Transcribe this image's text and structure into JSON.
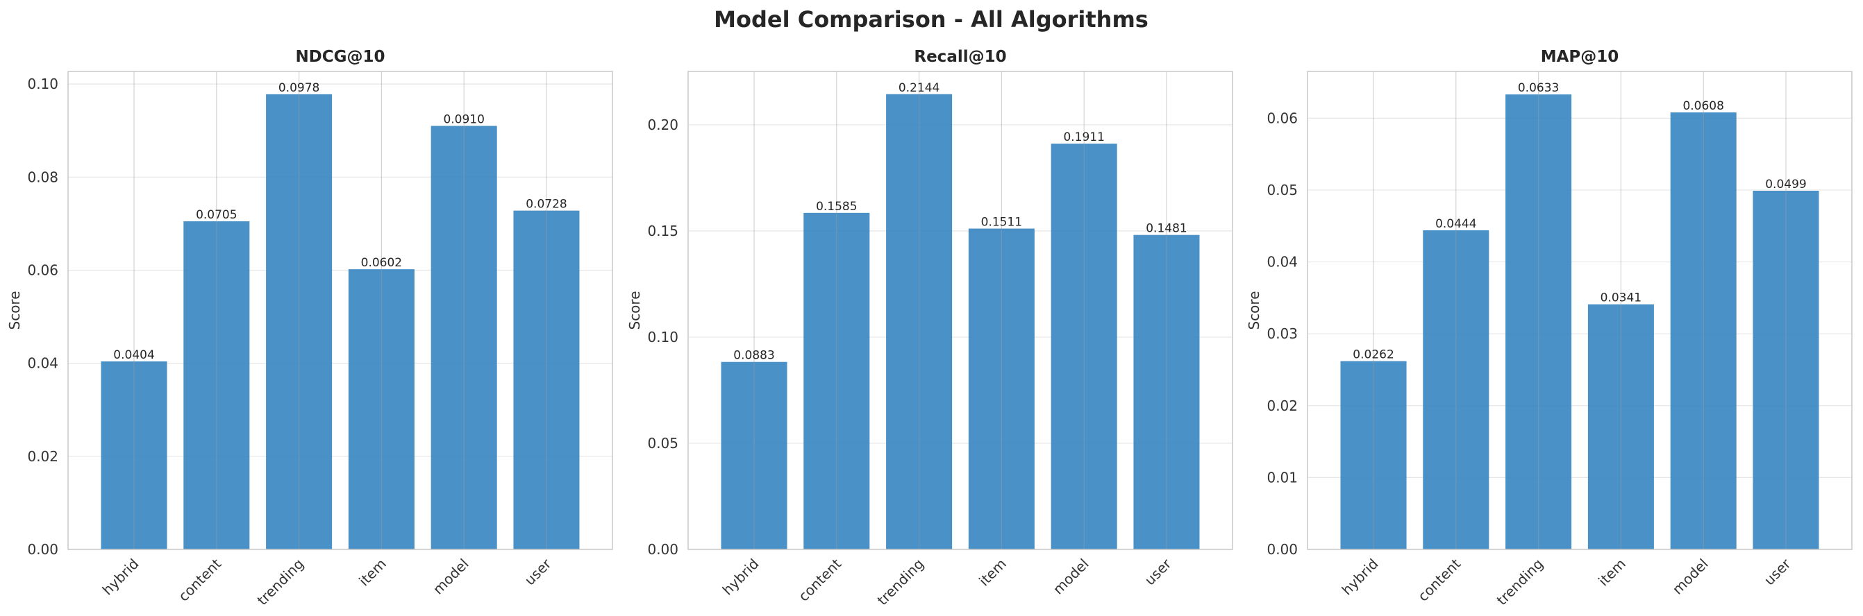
{
  "figure_title": "Model Comparison - All Algorithms",
  "colors": {
    "bar": "#3a88c1",
    "grid": "#e6e6e6",
    "axis": "#c8c8c8",
    "text": "#262626"
  },
  "chart_data": [
    {
      "type": "bar",
      "title": "NDCG@10",
      "xlabel": "",
      "ylabel": "Score",
      "categories": [
        "hybrid",
        "content",
        "trending",
        "item",
        "model",
        "user"
      ],
      "values": [
        0.0404,
        0.0705,
        0.0978,
        0.0602,
        0.091,
        0.0728
      ],
      "value_labels": [
        "0.0404",
        "0.0705",
        "0.0978",
        "0.0602",
        "0.0910",
        "0.0728"
      ],
      "ylim": [
        0,
        0.1027
      ],
      "yticks": [
        0.0,
        0.02,
        0.04,
        0.06,
        0.08,
        0.1
      ],
      "ytick_labels": [
        "0.00",
        "0.02",
        "0.04",
        "0.06",
        "0.08",
        "0.10"
      ],
      "grid": true
    },
    {
      "type": "bar",
      "title": "Recall@10",
      "xlabel": "",
      "ylabel": "Score",
      "categories": [
        "hybrid",
        "content",
        "trending",
        "item",
        "model",
        "user"
      ],
      "values": [
        0.0883,
        0.1585,
        0.2144,
        0.1511,
        0.1911,
        0.1481
      ],
      "value_labels": [
        "0.0883",
        "0.1585",
        "0.2144",
        "0.1511",
        "0.1911",
        "0.1481"
      ],
      "ylim": [
        0,
        0.2251
      ],
      "yticks": [
        0.0,
        0.05,
        0.1,
        0.15,
        0.2
      ],
      "ytick_labels": [
        "0.00",
        "0.05",
        "0.10",
        "0.15",
        "0.20"
      ],
      "grid": true
    },
    {
      "type": "bar",
      "title": "MAP@10",
      "xlabel": "",
      "ylabel": "Score",
      "categories": [
        "hybrid",
        "content",
        "trending",
        "item",
        "model",
        "user"
      ],
      "values": [
        0.0262,
        0.0444,
        0.0633,
        0.0341,
        0.0608,
        0.0499
      ],
      "value_labels": [
        "0.0262",
        "0.0444",
        "0.0633",
        "0.0341",
        "0.0608",
        "0.0499"
      ],
      "ylim": [
        0,
        0.0665
      ],
      "yticks": [
        0.0,
        0.01,
        0.02,
        0.03,
        0.04,
        0.05,
        0.06
      ],
      "ytick_labels": [
        "0.00",
        "0.01",
        "0.02",
        "0.03",
        "0.04",
        "0.05",
        "0.06"
      ],
      "grid": true
    }
  ]
}
